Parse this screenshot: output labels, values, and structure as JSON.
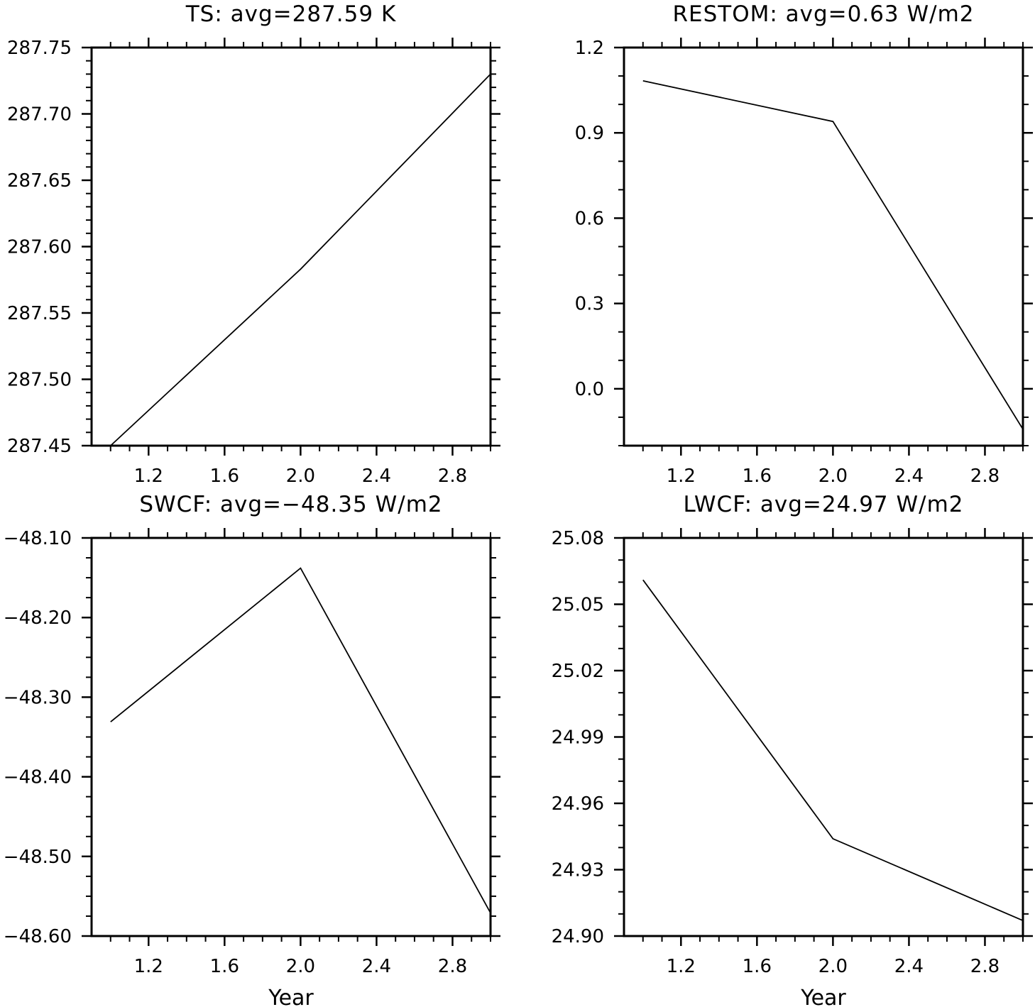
{
  "chart_data": [
    {
      "type": "line",
      "title": "TS: avg=287.59 K",
      "xlabel": "",
      "ylabel": "",
      "x": [
        1,
        2,
        3
      ],
      "series": [
        {
          "values": [
            287.45,
            287.583,
            287.73
          ]
        }
      ],
      "xlim": [
        0.9,
        3.0
      ],
      "ylim": [
        287.45,
        287.75
      ],
      "xticks": [
        1.2,
        1.6,
        2.0,
        2.4,
        2.8
      ],
      "xtick_labels": [
        "1.2",
        "1.6",
        "2.0",
        "2.4",
        "2.8"
      ],
      "yticks": [
        287.45,
        287.5,
        287.55,
        287.6,
        287.65,
        287.7,
        287.75
      ],
      "ytick_labels": [
        "287.45",
        "287.50",
        "287.55",
        "287.60",
        "287.65",
        "287.70",
        "287.75"
      ],
      "yminor": 0.01,
      "grid": false
    },
    {
      "type": "line",
      "title": "RESTOM: avg=0.63 W/m2",
      "xlabel": "",
      "ylabel": "",
      "x": [
        1,
        2,
        3
      ],
      "series": [
        {
          "values": [
            1.083,
            0.94,
            -0.142
          ]
        }
      ],
      "xlim": [
        0.9,
        3.0
      ],
      "ylim": [
        -0.2,
        1.2
      ],
      "xticks": [
        1.2,
        1.6,
        2.0,
        2.4,
        2.8
      ],
      "xtick_labels": [
        "1.2",
        "1.6",
        "2.0",
        "2.4",
        "2.8"
      ],
      "yticks": [
        0.0,
        0.3,
        0.6,
        0.9,
        1.2
      ],
      "ytick_labels": [
        "0.0",
        "0.3",
        "0.6",
        "0.9",
        "1.2"
      ],
      "yminor": 0.1,
      "grid": false
    },
    {
      "type": "line",
      "title": "SWCF: avg=−48.35 W/m2",
      "xlabel": "Year",
      "ylabel": "",
      "x": [
        1,
        2,
        3
      ],
      "series": [
        {
          "values": [
            -48.331,
            -48.138,
            -48.571
          ]
        }
      ],
      "xlim": [
        0.9,
        3.0
      ],
      "ylim": [
        -48.6,
        -48.1
      ],
      "xticks": [
        1.2,
        1.6,
        2.0,
        2.4,
        2.8
      ],
      "xtick_labels": [
        "1.2",
        "1.6",
        "2.0",
        "2.4",
        "2.8"
      ],
      "yticks": [
        -48.6,
        -48.5,
        -48.4,
        -48.3,
        -48.2,
        -48.1
      ],
      "ytick_labels": [
        "−48.60",
        "−48.50",
        "−48.40",
        "−48.30",
        "−48.20",
        "−48.10"
      ],
      "yminor": 0.025,
      "grid": false
    },
    {
      "type": "line",
      "title": "LWCF: avg=24.97 W/m2",
      "xlabel": "Year",
      "ylabel": "",
      "x": [
        1,
        2,
        3
      ],
      "series": [
        {
          "values": [
            25.061,
            24.944,
            24.907
          ]
        }
      ],
      "xlim": [
        0.9,
        3.0
      ],
      "ylim": [
        24.9,
        25.08
      ],
      "xticks": [
        1.2,
        1.6,
        2.0,
        2.4,
        2.8
      ],
      "xtick_labels": [
        "1.2",
        "1.6",
        "2.0",
        "2.4",
        "2.8"
      ],
      "yticks": [
        24.9,
        24.93,
        24.96,
        24.99,
        25.02,
        25.05,
        25.08
      ],
      "ytick_labels": [
        "24.90",
        "24.93",
        "24.96",
        "24.99",
        "25.02",
        "25.05",
        "25.08"
      ],
      "yminor": 0.01,
      "grid": false
    }
  ]
}
